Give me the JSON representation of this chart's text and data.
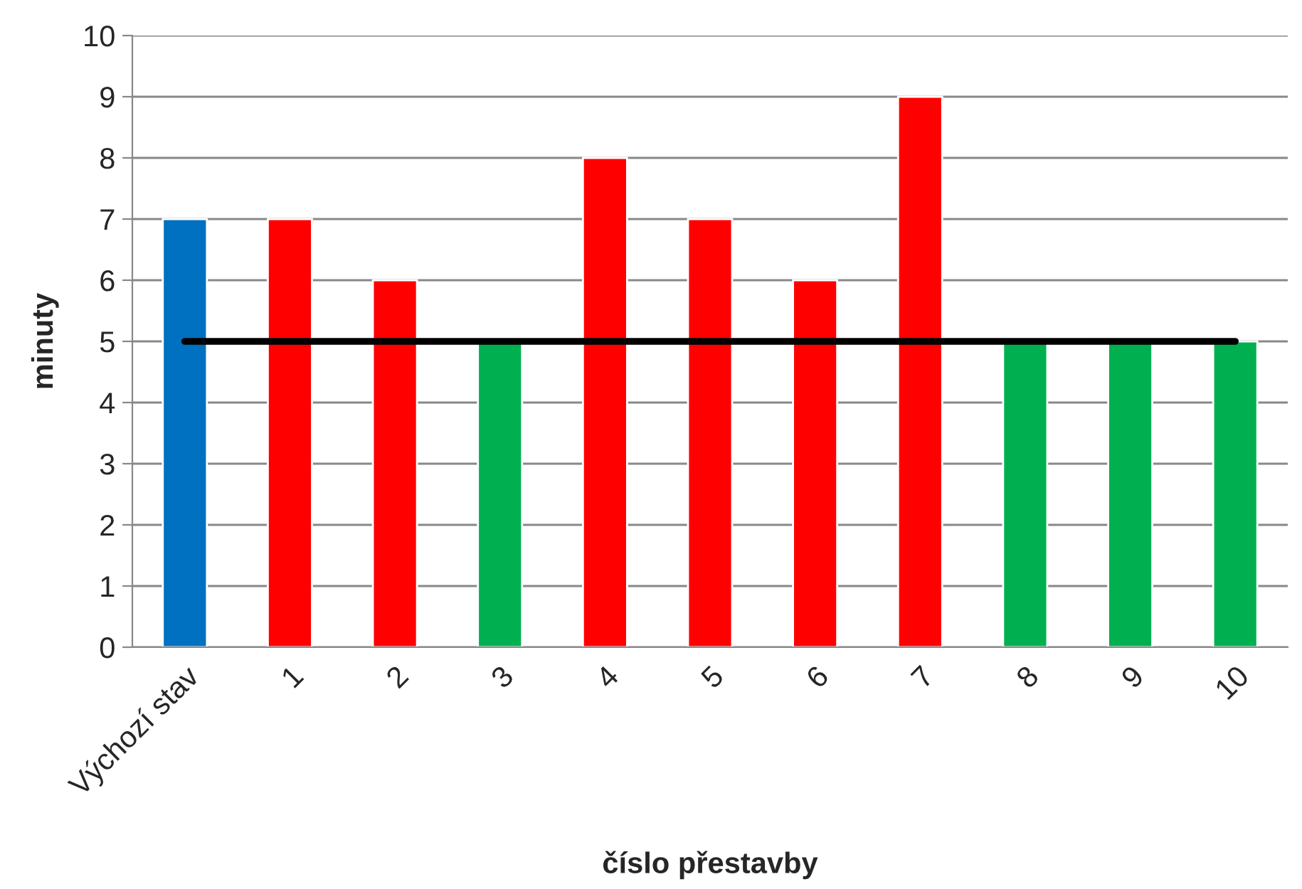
{
  "chart_data": {
    "type": "bar",
    "xlabel": "číslo přestavby",
    "ylabel": "minuty",
    "categories": [
      "Výchozí stav",
      "1",
      "2",
      "3",
      "4",
      "5",
      "6",
      "7",
      "8",
      "9",
      "10"
    ],
    "series": [
      {
        "colors": [
          "#0070c0",
          "#ff0000",
          "#ff0000",
          "#00b050",
          "#ff0000",
          "#ff0000",
          "#ff0000",
          "#ff0000",
          "#00b050",
          "#00b050",
          "#00b050"
        ],
        "values": [
          7,
          7,
          6,
          5,
          8,
          7,
          6,
          9,
          5,
          5,
          5
        ]
      },
      {
        "type": "line",
        "color": "#000000",
        "values": [
          5,
          5,
          5,
          5,
          5,
          5,
          5,
          5,
          5,
          5,
          5
        ]
      }
    ],
    "ylim": [
      0,
      10
    ],
    "yticks": [
      0,
      1,
      2,
      3,
      4,
      5,
      6,
      7,
      8,
      9,
      10
    ],
    "grid": "y",
    "marker": "none",
    "line_style": "solid"
  }
}
